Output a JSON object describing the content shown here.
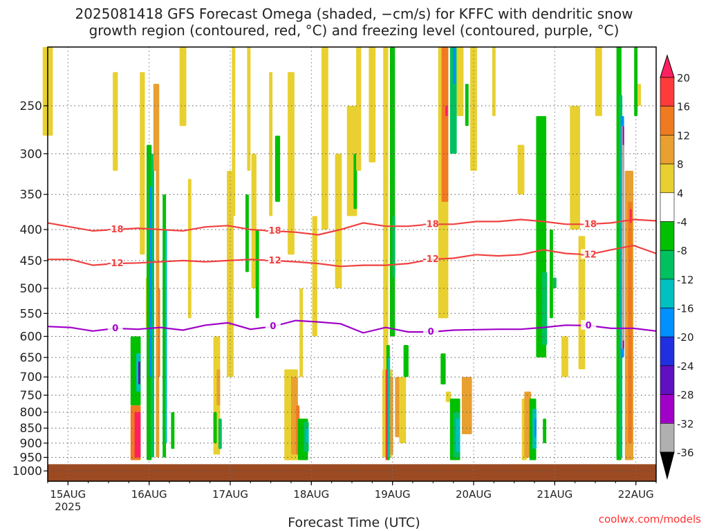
{
  "title_line1": "2025081418 GFS Forecast Omega (shaded, −cm/s) for KFFC with dendritic snow",
  "title_line2": "growth region (contoured, red, °C) and freezing level (contoured, purple, °C)",
  "credit": "coolwx.com/models",
  "chart_data": {
    "type": "heatmap",
    "xlabel": "Forecast Time (UTC)",
    "x_ticks": [
      "15AUG",
      "16AUG",
      "17AUG",
      "18AUG",
      "19AUG",
      "20AUG",
      "21AUG",
      "22AUG"
    ],
    "x_year": "2025",
    "x_range_hours": [
      -6,
      174
    ],
    "ylabel": "",
    "y_scale": "log-pressure",
    "y_range_hPa": [
      200,
      1040
    ],
    "y_ticks": [
      250,
      300,
      350,
      400,
      450,
      500,
      550,
      600,
      650,
      700,
      750,
      800,
      850,
      900,
      950,
      1000
    ],
    "colorbar": {
      "levels": [
        20,
        16,
        12,
        8,
        4,
        -4,
        -8,
        -12,
        -16,
        -20,
        -24,
        -28,
        -32,
        -36
      ],
      "colors": [
        "#ff2060",
        "#ff3a3a",
        "#f07a20",
        "#e8a030",
        "#e8d030",
        "#ffffff",
        "#00c000",
        "#00c060",
        "#00c0c0",
        "#0090ff",
        "#2030e0",
        "#6010c0",
        "#a000c8",
        "#b0b0b0",
        "#000000"
      ]
    },
    "contours": [
      {
        "label": "-18",
        "color": "#f04040",
        "pressure": [
          390,
          396,
          402,
          400,
          398,
          400,
          402,
          396,
          394,
          400,
          402,
          404,
          408,
          400,
          390,
          395,
          395,
          392,
          392,
          388,
          388,
          385,
          388,
          392,
          392,
          390,
          385,
          387
        ]
      },
      {
        "label": "-12",
        "color": "#f04040",
        "pressure": [
          448,
          448,
          458,
          455,
          454,
          452,
          450,
          452,
          450,
          448,
          450,
          452,
          455,
          460,
          458,
          458,
          455,
          448,
          446,
          440,
          442,
          440,
          432,
          438,
          440,
          432,
          425,
          438
        ]
      },
      {
        "label": "0",
        "color": "#a000c8",
        "pressure": [
          578,
          580,
          588,
          582,
          584,
          580,
          586,
          575,
          570,
          584,
          578,
          565,
          568,
          572,
          592,
          580,
          590,
          590,
          586,
          585,
          584,
          584,
          580,
          575,
          576,
          582,
          582,
          588
        ]
      }
    ],
    "contour_labels": [
      "-18",
      "-18",
      "-18",
      "-18",
      "-12",
      "-12",
      "-12",
      "-12",
      "0",
      "0",
      "0",
      "0"
    ],
    "ground_pressure_hPa": 975,
    "cells": [
      {
        "h": -6,
        "w": 3,
        "p1": 200,
        "p2": 280,
        "v": 4
      },
      {
        "h": 14,
        "w": 1.5,
        "p1": 220,
        "p2": 320,
        "v": 4
      },
      {
        "h": 22,
        "w": 1.5,
        "p1": 220,
        "p2": 440,
        "v": 4
      },
      {
        "h": 24,
        "w": 2,
        "p1": 480,
        "p2": 580,
        "v": 4
      },
      {
        "h": 24,
        "w": 1.5,
        "p1": 290,
        "p2": 960,
        "v": -8
      },
      {
        "h": 25,
        "w": 1,
        "p1": 300,
        "p2": 950,
        "v": -12
      },
      {
        "h": 24.5,
        "w": 0.6,
        "p1": 340,
        "p2": 700,
        "v": -20
      },
      {
        "h": 26.5,
        "w": 1,
        "p1": 230,
        "p2": 950,
        "v": 8
      },
      {
        "h": 27,
        "w": 0.5,
        "p1": 500,
        "p2": 700,
        "v": 12
      },
      {
        "h": 26,
        "w": 1.5,
        "p1": 230,
        "p2": 320,
        "v": 8
      },
      {
        "h": 28.5,
        "w": 1,
        "p1": 350,
        "p2": 950,
        "v": -8
      },
      {
        "h": 29,
        "w": 0.6,
        "p1": 400,
        "p2": 900,
        "v": -16
      },
      {
        "h": 20,
        "w": 3,
        "p1": 600,
        "p2": 780,
        "v": -8
      },
      {
        "h": 20.8,
        "w": 1.2,
        "p1": 640,
        "p2": 740,
        "v": -16
      },
      {
        "h": 21.1,
        "w": 0.6,
        "p1": 660,
        "p2": 720,
        "v": -28
      },
      {
        "h": 20,
        "w": 3,
        "p1": 780,
        "p2": 960,
        "v": 12
      },
      {
        "h": 20.6,
        "w": 1.8,
        "p1": 800,
        "p2": 950,
        "v": 20
      },
      {
        "h": 31,
        "w": 1,
        "p1": 800,
        "p2": 920,
        "v": -8
      },
      {
        "h": 34,
        "w": 2,
        "p1": 200,
        "p2": 270,
        "v": 4
      },
      {
        "h": 36,
        "w": 1,
        "p1": 330,
        "p2": 560,
        "v": 4
      },
      {
        "h": 44,
        "w": 2,
        "p1": 600,
        "p2": 940,
        "v": 4
      },
      {
        "h": 44.5,
        "w": 1,
        "p1": 680,
        "p2": 780,
        "v": 8
      },
      {
        "h": 43.5,
        "w": 1,
        "p1": 800,
        "p2": 900,
        "v": -8
      },
      {
        "h": 45,
        "w": 1,
        "p1": 820,
        "p2": 920,
        "v": -12
      },
      {
        "h": 48,
        "w": 2,
        "p1": 320,
        "p2": 700,
        "v": 4
      },
      {
        "h": 49,
        "w": 1,
        "p1": 200,
        "p2": 380,
        "v": 4
      },
      {
        "h": 53.5,
        "w": 1,
        "p1": 200,
        "p2": 320,
        "v": 4
      },
      {
        "h": 53,
        "w": 1,
        "p1": 350,
        "p2": 470,
        "v": -8
      },
      {
        "h": 55,
        "w": 1.5,
        "p1": 300,
        "p2": 500,
        "v": 4
      },
      {
        "h": 56,
        "w": 1,
        "p1": 400,
        "p2": 560,
        "v": -8
      },
      {
        "h": 60,
        "w": 1,
        "p1": 220,
        "p2": 380,
        "v": 4
      },
      {
        "h": 62,
        "w": 1.5,
        "p1": 280,
        "p2": 360,
        "v": -8
      },
      {
        "h": 66,
        "w": 2,
        "p1": 220,
        "p2": 440,
        "v": 4
      },
      {
        "h": 69,
        "w": 1,
        "p1": 500,
        "p2": 700,
        "v": 4
      },
      {
        "h": 66,
        "w": 4,
        "p1": 680,
        "p2": 960,
        "v": 4
      },
      {
        "h": 67,
        "w": 2,
        "p1": 700,
        "p2": 940,
        "v": 8
      },
      {
        "h": 68,
        "w": 1,
        "p1": 780,
        "p2": 940,
        "v": 12
      },
      {
        "h": 69.5,
        "w": 3,
        "p1": 820,
        "p2": 960,
        "v": -8
      },
      {
        "h": 70.5,
        "w": 1.5,
        "p1": 830,
        "p2": 930,
        "v": -12
      },
      {
        "h": 70.8,
        "w": 0.8,
        "p1": 850,
        "p2": 900,
        "v": -16
      },
      {
        "h": 73,
        "w": 1.5,
        "p1": 380,
        "p2": 600,
        "v": 4
      },
      {
        "h": 76,
        "w": 2,
        "p1": 200,
        "p2": 400,
        "v": 4
      },
      {
        "h": 80,
        "w": 2,
        "p1": 300,
        "p2": 500,
        "v": 4
      },
      {
        "h": 84,
        "w": 3,
        "p1": 250,
        "p2": 380,
        "v": 4
      },
      {
        "h": 85,
        "w": 1,
        "p1": 300,
        "p2": 370,
        "v": -8
      },
      {
        "h": 86,
        "w": 1.5,
        "p1": 200,
        "p2": 320,
        "v": 4
      },
      {
        "h": 90,
        "w": 2,
        "p1": 200,
        "p2": 310,
        "v": 4
      },
      {
        "h": 94,
        "w": 1.5,
        "p1": 200,
        "p2": 880,
        "v": 4
      },
      {
        "h": 94.5,
        "w": 3,
        "p1": 680,
        "p2": 950,
        "v": 4
      },
      {
        "h": 95.2,
        "w": 2,
        "p1": 700,
        "p2": 940,
        "v": 8
      },
      {
        "h": 94.7,
        "w": 1,
        "p1": 620,
        "p2": 960,
        "v": -8
      },
      {
        "h": 95,
        "w": 0.6,
        "p1": 650,
        "p2": 950,
        "v": -16
      },
      {
        "h": 94.2,
        "w": 0.5,
        "p1": 680,
        "p2": 960,
        "v": 16
      },
      {
        "h": 96,
        "w": 1.5,
        "p1": 200,
        "p2": 600,
        "v": -8
      },
      {
        "h": 96.4,
        "w": 0.8,
        "p1": 380,
        "p2": 480,
        "v": -12
      },
      {
        "h": 97.5,
        "w": 1.5,
        "p1": 700,
        "p2": 880,
        "v": 8
      },
      {
        "h": 99,
        "w": 2,
        "p1": 700,
        "p2": 900,
        "v": 4
      },
      {
        "h": 100,
        "w": 1.5,
        "p1": 620,
        "p2": 700,
        "v": -8
      },
      {
        "h": 111,
        "w": 3,
        "p1": 200,
        "p2": 560,
        "v": 4
      },
      {
        "h": 111.5,
        "w": 2,
        "p1": 200,
        "p2": 360,
        "v": 12
      },
      {
        "h": 112,
        "w": 0.7,
        "p1": 250,
        "p2": 260,
        "v": 20
      },
      {
        "h": 114,
        "w": 2,
        "p1": 200,
        "p2": 300,
        "v": -12
      },
      {
        "h": 114.3,
        "w": 0.8,
        "p1": 200,
        "p2": 230,
        "v": -20
      },
      {
        "h": 116,
        "w": 2,
        "p1": 200,
        "p2": 260,
        "v": 4
      },
      {
        "h": 118,
        "w": 1,
        "p1": 230,
        "p2": 270,
        "v": -8
      },
      {
        "h": 111,
        "w": 1.5,
        "p1": 640,
        "p2": 720,
        "v": -8
      },
      {
        "h": 118,
        "w": 3,
        "p1": 700,
        "p2": 870,
        "v": 8
      },
      {
        "h": 112.5,
        "w": 1.5,
        "p1": 740,
        "p2": 770,
        "v": 4
      },
      {
        "h": 114.5,
        "w": 3,
        "p1": 760,
        "p2": 960,
        "v": -8
      },
      {
        "h": 115,
        "w": 2,
        "p1": 800,
        "p2": 950,
        "v": -12
      },
      {
        "h": 115.4,
        "w": 1.2,
        "p1": 820,
        "p2": 930,
        "v": -16
      },
      {
        "h": 120,
        "w": 2,
        "p1": 200,
        "p2": 320,
        "v": 4
      },
      {
        "h": 126,
        "w": 1,
        "p1": 200,
        "p2": 260,
        "v": 4
      },
      {
        "h": 134,
        "w": 2,
        "p1": 290,
        "p2": 350,
        "v": 4
      },
      {
        "h": 135,
        "w": 1.5,
        "p1": 760,
        "p2": 960,
        "v": 4
      },
      {
        "h": 136,
        "w": 2,
        "p1": 740,
        "p2": 950,
        "v": 8
      },
      {
        "h": 137.5,
        "w": 2,
        "p1": 760,
        "p2": 960,
        "v": -8
      },
      {
        "h": 138,
        "w": 1.2,
        "p1": 790,
        "p2": 920,
        "v": -16
      },
      {
        "h": 138.3,
        "w": 0.6,
        "p1": 820,
        "p2": 880,
        "v": -20
      },
      {
        "h": 140,
        "w": 3,
        "p1": 260,
        "p2": 650,
        "v": -8
      },
      {
        "h": 141,
        "w": 1.5,
        "p1": 470,
        "p2": 620,
        "v": -12
      },
      {
        "h": 139,
        "w": 1,
        "p1": 480,
        "p2": 520,
        "v": -8
      },
      {
        "h": 143,
        "w": 1,
        "p1": 400,
        "p2": 560,
        "v": -8
      },
      {
        "h": 144,
        "w": 1,
        "p1": 480,
        "p2": 500,
        "v": -12
      },
      {
        "h": 141,
        "w": 1,
        "p1": 820,
        "p2": 900,
        "v": -8
      },
      {
        "h": 147,
        "w": 2,
        "p1": 600,
        "p2": 700,
        "v": 4
      },
      {
        "h": 150,
        "w": 3,
        "p1": 250,
        "p2": 400,
        "v": 4
      },
      {
        "h": 152,
        "w": 2,
        "p1": 410,
        "p2": 680,
        "v": 4
      },
      {
        "h": 157,
        "w": 2,
        "p1": 200,
        "p2": 260,
        "v": 4
      },
      {
        "h": 163,
        "w": 1.5,
        "p1": 200,
        "p2": 960,
        "v": -8
      },
      {
        "h": 163.5,
        "w": 1,
        "p1": 240,
        "p2": 950,
        "v": -12
      },
      {
        "h": 164,
        "w": 1,
        "p1": 260,
        "p2": 650,
        "v": -20
      },
      {
        "h": 164.2,
        "w": 0.8,
        "p1": 270,
        "p2": 630,
        "v": -36
      },
      {
        "h": 164.3,
        "w": 0.4,
        "p1": 270,
        "p2": 630,
        "v": -32
      },
      {
        "h": 164.25,
        "w": 0.5,
        "p1": 290,
        "p2": 610,
        "v": -36
      },
      {
        "h": 166,
        "w": 2.5,
        "p1": 320,
        "p2": 960,
        "v": 8
      },
      {
        "h": 166.3,
        "w": 1.2,
        "p1": 360,
        "p2": 900,
        "v": 12
      },
      {
        "h": 166.5,
        "w": 0.6,
        "p1": 370,
        "p2": 390,
        "v": 20
      },
      {
        "h": 168,
        "w": 1,
        "p1": 200,
        "p2": 260,
        "v": -8
      },
      {
        "h": 169,
        "w": 1,
        "p1": 230,
        "p2": 250,
        "v": 4
      }
    ]
  }
}
